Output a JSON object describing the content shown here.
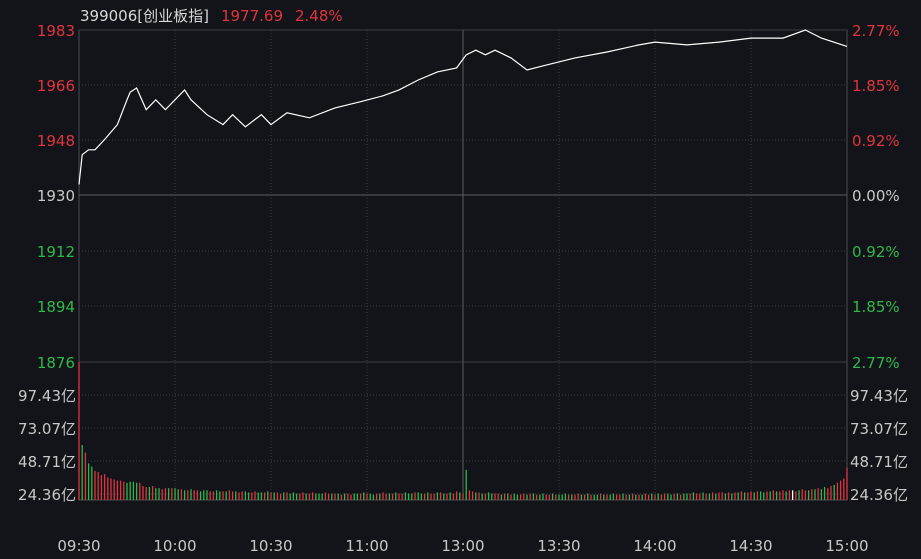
{
  "header": {
    "code_name": "399006[创业板指]",
    "price": "1977.69",
    "change_pct": "2.48%"
  },
  "colors": {
    "up": "#e0343f",
    "down": "#2fb84a",
    "neutral": "#c8c8c8",
    "line": "#ffffff",
    "grid": "#3a3c44",
    "bg": "#131419"
  },
  "chart_data": [
    {
      "type": "line",
      "title": "399006[创业板指]",
      "ylim": [
        1876,
        1983
      ],
      "prev_close": 1930,
      "y_ticks_left": [
        "1983",
        "1966",
        "1948",
        "1930",
        "1912",
        "1894",
        "1876"
      ],
      "y_ticks_right": [
        "2.77%",
        "1.85%",
        "0.92%",
        "0.00%",
        "0.92%",
        "1.85%",
        "2.77%"
      ],
      "x_ticks": [
        "09:30",
        "10:00",
        "10:30",
        "11:00",
        "13:00",
        "13:30",
        "14:00",
        "14:30",
        "15:00"
      ],
      "grid": true,
      "x_minutes": [
        0,
        1,
        3,
        5,
        8,
        12,
        15,
        16,
        18,
        21,
        24,
        27,
        30,
        33,
        35,
        40,
        45,
        48,
        52,
        57,
        60,
        65,
        72,
        80,
        88,
        95,
        100,
        106,
        112,
        118,
        121,
        124,
        127,
        130,
        135,
        140,
        146,
        155,
        165,
        175,
        180,
        190,
        200,
        210,
        220,
        227,
        232,
        240
      ],
      "y": [
        1933.2,
        1942.8,
        1944.4,
        1944.4,
        1947.7,
        1952.5,
        1960.5,
        1963,
        1964.3,
        1957.3,
        1960.5,
        1957.3,
        1960.5,
        1963.7,
        1960.5,
        1955.7,
        1952.5,
        1955.7,
        1951.8,
        1955.7,
        1952.5,
        1956.3,
        1954.7,
        1957.9,
        1959.9,
        1961.8,
        1963.7,
        1966.9,
        1969.5,
        1970.8,
        1975,
        1976.5,
        1975,
        1976.5,
        1974,
        1970.1,
        1971.7,
        1974,
        1975.9,
        1978.2,
        1979.1,
        1978.2,
        1979.1,
        1980.4,
        1980.4,
        1983,
        1980.4,
        1977.7
      ]
    },
    {
      "type": "bar",
      "y_ticks": [
        "97.43亿",
        "73.07亿",
        "48.71亿",
        "24.36亿"
      ],
      "unit": "亿",
      "values": [
        128,
        51,
        44,
        34,
        31,
        27,
        26,
        23,
        24,
        21,
        20,
        19,
        18,
        18,
        17,
        16,
        17,
        17,
        16,
        16,
        13,
        12,
        12,
        13,
        11,
        11,
        10,
        11,
        11,
        11,
        11,
        10,
        10,
        9,
        9,
        10,
        9,
        9,
        8,
        9,
        9,
        8,
        8,
        9,
        8,
        8,
        8,
        9,
        8,
        8,
        7,
        8,
        8,
        7,
        7,
        8,
        7,
        7,
        7,
        8,
        7,
        7,
        7,
        6,
        7,
        7,
        6,
        7,
        6,
        6,
        7,
        6,
        6,
        7,
        6,
        6,
        6,
        7,
        6,
        6,
        6,
        6,
        5,
        6,
        6,
        5,
        6,
        6,
        6,
        7,
        6,
        6,
        5,
        6,
        6,
        7,
        6,
        6,
        6,
        7,
        6,
        6,
        7,
        6,
        6,
        7,
        7,
        6,
        6,
        7,
        6,
        6,
        7,
        7,
        6,
        6,
        7,
        6,
        8,
        7,
        6,
        28,
        9,
        8,
        7,
        7,
        6,
        6,
        7,
        6,
        6,
        6,
        5,
        6,
        6,
        5,
        6,
        5,
        5,
        6,
        5,
        6,
        6,
        5,
        5,
        6,
        5,
        5,
        6,
        5,
        5,
        5,
        6,
        5,
        5,
        5,
        6,
        5,
        5,
        6,
        5,
        5,
        5,
        6,
        5,
        5,
        5,
        6,
        5,
        5,
        6,
        5,
        5,
        6,
        5,
        5,
        5,
        6,
        5,
        6,
        5,
        6,
        5,
        6,
        6,
        5,
        6,
        6,
        5,
        6,
        6,
        6,
        7,
        6,
        6,
        7,
        6,
        6,
        7,
        6,
        7,
        7,
        6,
        7,
        6,
        7,
        7,
        8,
        7,
        7,
        8,
        7,
        8,
        8,
        7,
        8,
        8,
        9,
        8,
        8,
        9,
        8,
        9,
        9,
        8,
        9,
        10,
        9,
        9,
        10,
        10,
        11,
        10,
        12,
        11,
        13,
        14,
        16,
        18,
        20,
        30
      ],
      "directions": "rgrggrrrrrrrrrrggggrrrgrggrrgrggrgrgrrgggrrggrgrrgrrggrrggrgrgrrgrgggrrgrrgggrrgrgrgrrggrgrggrgrrgrgrrgggrggrgrrgrgrgrrgrgrrgrgrggrrgrgrggrrgrgrggrrgrgggrgrrgrgrggrgrggrrgrgrgrgrrgrgrrggrgrggrgrrgrgrgrrgrgrgrgrrgrggrgrgrrgrwrgrrgrgrggrrg"
    }
  ]
}
